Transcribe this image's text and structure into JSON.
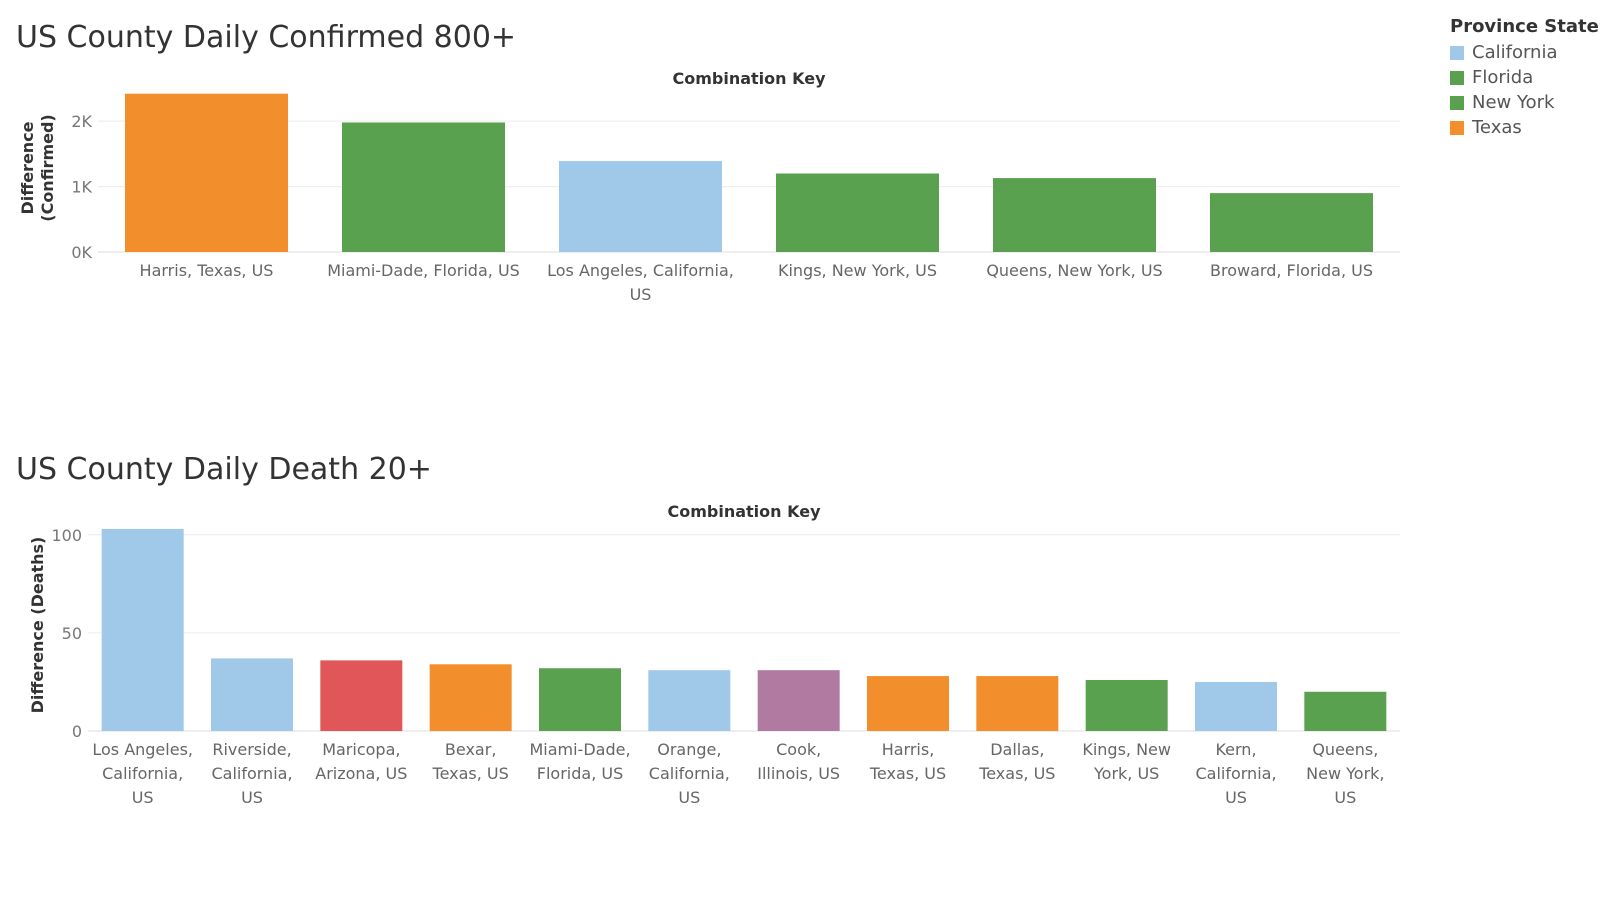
{
  "legend": {
    "title": "Province State",
    "items": [
      {
        "label": "California",
        "color": "#a0c8e8"
      },
      {
        "label": "Florida",
        "color": "#59a14f"
      },
      {
        "label": "New York",
        "color": "#59a14f"
      },
      {
        "label": "Texas",
        "color": "#f28e2b"
      }
    ]
  },
  "chart_data": [
    {
      "type": "bar",
      "title": "US County Daily Confirmed 800+",
      "header": "Combination Key",
      "ylabel": [
        "Difference",
        "(Confirmed)"
      ],
      "ylim": [
        0,
        2400
      ],
      "yticks": [
        {
          "value": 0,
          "label": "0K"
        },
        {
          "value": 1000,
          "label": "1K"
        },
        {
          "value": 2000,
          "label": "2K"
        }
      ],
      "grid": true,
      "categories": [
        [
          "Harris, Texas, US"
        ],
        [
          "Miami-Dade, Florida, US"
        ],
        [
          "Los Angeles, California,",
          "US"
        ],
        [
          "Kings, New York, US"
        ],
        [
          "Queens, New York, US"
        ],
        [
          "Broward, Florida, US"
        ]
      ],
      "values": [
        2420,
        1980,
        1390,
        1200,
        1130,
        900
      ],
      "colors": [
        "#f28e2b",
        "#59a14f",
        "#a0c8e8",
        "#59a14f",
        "#59a14f",
        "#59a14f"
      ]
    },
    {
      "type": "bar",
      "title": "US County Daily Death 20+",
      "header": "Combination Key",
      "ylabel": [
        "Difference (Deaths)"
      ],
      "ylim": [
        0,
        105
      ],
      "yticks": [
        {
          "value": 0,
          "label": "0"
        },
        {
          "value": 50,
          "label": "50"
        },
        {
          "value": 100,
          "label": "100"
        }
      ],
      "grid": true,
      "categories": [
        [
          "Los Angeles,",
          "California,",
          "US"
        ],
        [
          "Riverside,",
          "California,",
          "US"
        ],
        [
          "Maricopa,",
          "Arizona, US"
        ],
        [
          "Bexar,",
          "Texas, US"
        ],
        [
          "Miami-Dade,",
          "Florida, US"
        ],
        [
          "Orange,",
          "California,",
          "US"
        ],
        [
          "Cook,",
          "Illinois, US"
        ],
        [
          "Harris,",
          "Texas, US"
        ],
        [
          "Dallas,",
          "Texas, US"
        ],
        [
          "Kings, New",
          "York, US"
        ],
        [
          "Kern,",
          "California,",
          "US"
        ],
        [
          "Queens,",
          "New York,",
          "US"
        ]
      ],
      "values": [
        103,
        37,
        36,
        34,
        32,
        31,
        31,
        28,
        28,
        26,
        25,
        20
      ],
      "colors": [
        "#a0c8e8",
        "#a0c8e8",
        "#e15759",
        "#f28e2b",
        "#59a14f",
        "#a0c8e8",
        "#b07aa1",
        "#f28e2b",
        "#f28e2b",
        "#59a14f",
        "#a0c8e8",
        "#59a14f"
      ]
    }
  ]
}
